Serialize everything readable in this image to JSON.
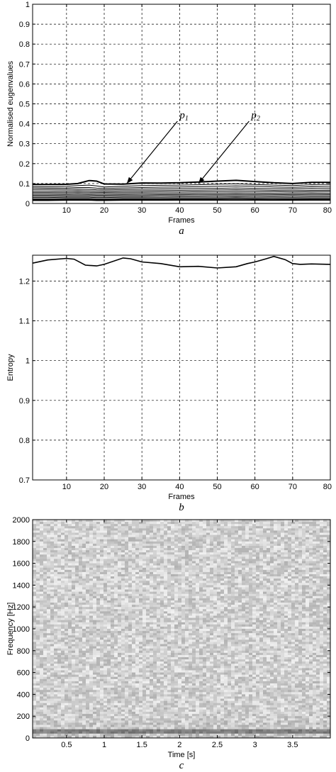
{
  "colors": {
    "background": "#ffffff",
    "line": "#000000"
  },
  "chart_data": [
    {
      "type": "line",
      "panel_label": "a",
      "xlabel": "Frames",
      "ylabel": "Normalised eugenvalues",
      "xlim": [
        1,
        80
      ],
      "ylim": [
        0,
        1
      ],
      "xticks": [
        10,
        20,
        30,
        40,
        50,
        60,
        70,
        80
      ],
      "yticks": [
        0,
        0.1,
        0.2,
        0.3,
        0.4,
        0.5,
        0.6,
        0.7,
        0.8,
        0.9,
        1
      ],
      "yticklabels": [
        "0",
        "0.1",
        "0.2",
        "0.3",
        "0.4",
        "0.5",
        "0.6",
        "0.7",
        "0.8",
        "0.9",
        "1"
      ],
      "grid": true,
      "x": [
        1,
        5,
        10,
        13,
        16,
        18,
        20,
        25,
        30,
        35,
        40,
        45,
        50,
        55,
        60,
        65,
        70,
        75,
        80
      ],
      "series": [
        {
          "values": [
            0.095,
            0.095,
            0.096,
            0.1,
            0.115,
            0.112,
            0.098,
            0.097,
            0.103,
            0.102,
            0.104,
            0.108,
            0.112,
            0.116,
            0.11,
            0.104,
            0.1,
            0.106,
            0.106
          ]
        },
        {
          "values": [
            0.085,
            0.084,
            0.086,
            0.09,
            0.092,
            0.088,
            0.083,
            0.086,
            0.09,
            0.091,
            0.092,
            0.094,
            0.097,
            0.099,
            0.095,
            0.092,
            0.09,
            0.094,
            0.093
          ]
        },
        {
          "values": [
            0.078,
            0.077,
            0.078,
            0.08,
            0.08,
            0.077,
            0.075,
            0.078,
            0.08,
            0.082,
            0.083,
            0.084,
            0.086,
            0.088,
            0.086,
            0.083,
            0.081,
            0.084,
            0.083
          ]
        },
        {
          "values": [
            0.07,
            0.07,
            0.071,
            0.072,
            0.071,
            0.069,
            0.068,
            0.07,
            0.072,
            0.073,
            0.074,
            0.075,
            0.076,
            0.078,
            0.076,
            0.074,
            0.073,
            0.075,
            0.074
          ]
        },
        {
          "values": [
            0.062,
            0.062,
            0.063,
            0.064,
            0.063,
            0.062,
            0.061,
            0.063,
            0.064,
            0.065,
            0.066,
            0.067,
            0.068,
            0.069,
            0.068,
            0.066,
            0.065,
            0.066,
            0.066
          ]
        },
        {
          "values": [
            0.055,
            0.055,
            0.056,
            0.057,
            0.056,
            0.055,
            0.055,
            0.056,
            0.057,
            0.058,
            0.058,
            0.059,
            0.06,
            0.061,
            0.06,
            0.059,
            0.058,
            0.059,
            0.059
          ]
        },
        {
          "values": [
            0.048,
            0.048,
            0.049,
            0.05,
            0.049,
            0.048,
            0.048,
            0.049,
            0.05,
            0.05,
            0.051,
            0.052,
            0.052,
            0.053,
            0.052,
            0.051,
            0.051,
            0.052,
            0.051
          ]
        },
        {
          "values": [
            0.042,
            0.042,
            0.043,
            0.043,
            0.043,
            0.042,
            0.042,
            0.043,
            0.043,
            0.044,
            0.044,
            0.045,
            0.045,
            0.046,
            0.045,
            0.045,
            0.044,
            0.045,
            0.045
          ]
        },
        {
          "values": [
            0.036,
            0.036,
            0.037,
            0.037,
            0.037,
            0.036,
            0.036,
            0.037,
            0.037,
            0.038,
            0.038,
            0.038,
            0.039,
            0.039,
            0.039,
            0.038,
            0.038,
            0.038,
            0.038
          ]
        },
        {
          "values": [
            0.03,
            0.03,
            0.031,
            0.031,
            0.031,
            0.03,
            0.03,
            0.031,
            0.031,
            0.031,
            0.032,
            0.032,
            0.032,
            0.033,
            0.032,
            0.032,
            0.031,
            0.032,
            0.032
          ]
        },
        {
          "values": [
            0.024,
            0.024,
            0.025,
            0.025,
            0.025,
            0.024,
            0.024,
            0.025,
            0.025,
            0.025,
            0.026,
            0.026,
            0.026,
            0.027,
            0.026,
            0.026,
            0.025,
            0.026,
            0.026
          ]
        },
        {
          "values": [
            0.017,
            0.017,
            0.018,
            0.018,
            0.018,
            0.017,
            0.017,
            0.018,
            0.018,
            0.018,
            0.019,
            0.019,
            0.019,
            0.019,
            0.019,
            0.018,
            0.018,
            0.019,
            0.019
          ]
        }
      ],
      "annotations": [
        {
          "base": "p",
          "sub": "1",
          "text_pos": [
            40,
            0.42
          ],
          "arrow_to": [
            26,
            0.1
          ]
        },
        {
          "base": "p",
          "sub": "2",
          "text_pos": [
            59,
            0.42
          ],
          "arrow_to": [
            45,
            0.1
          ]
        }
      ]
    },
    {
      "type": "line",
      "panel_label": "b",
      "xlabel": "Frames",
      "ylabel": "Entropy",
      "xlim": [
        1,
        80
      ],
      "ylim": [
        0.7,
        1.265
      ],
      "xticks": [
        10,
        20,
        30,
        40,
        50,
        60,
        70,
        80
      ],
      "yticks": [
        0.7,
        0.8,
        0.9,
        1,
        1.1,
        1.2
      ],
      "yticklabels": [
        "0.7",
        "0.8",
        "0.9",
        "1",
        "1.1",
        "1.2"
      ],
      "grid": true,
      "x": [
        1,
        5,
        10,
        12,
        15,
        18,
        20,
        25,
        27,
        30,
        35,
        40,
        45,
        50,
        55,
        58,
        60,
        63,
        65,
        68,
        70,
        72,
        75,
        80
      ],
      "y": [
        1.245,
        1.253,
        1.257,
        1.255,
        1.24,
        1.238,
        1.242,
        1.258,
        1.256,
        1.248,
        1.244,
        1.236,
        1.237,
        1.233,
        1.236,
        1.244,
        1.248,
        1.256,
        1.262,
        1.254,
        1.244,
        1.242,
        1.243,
        1.242
      ]
    },
    {
      "type": "heatmap",
      "panel_label": "c",
      "xlabel": "Time [s]",
      "ylabel": "Frequency [Hz]",
      "xlim": [
        0.05,
        4.0
      ],
      "ylim": [
        0,
        2000
      ],
      "xticks": [
        0.5,
        1,
        1.5,
        2,
        2.5,
        3,
        3.5
      ],
      "xticklabels": [
        "0.5",
        "1",
        "1.5",
        "2",
        "2.5",
        "3",
        "3.5"
      ],
      "yticks": [
        0,
        200,
        400,
        600,
        800,
        1000,
        1200,
        1400,
        1600,
        1800,
        2000
      ],
      "colormap": "gray",
      "description_bands": [
        {
          "from_hz": 40,
          "to_hz": 80,
          "intensity": 0.7
        }
      ]
    }
  ]
}
